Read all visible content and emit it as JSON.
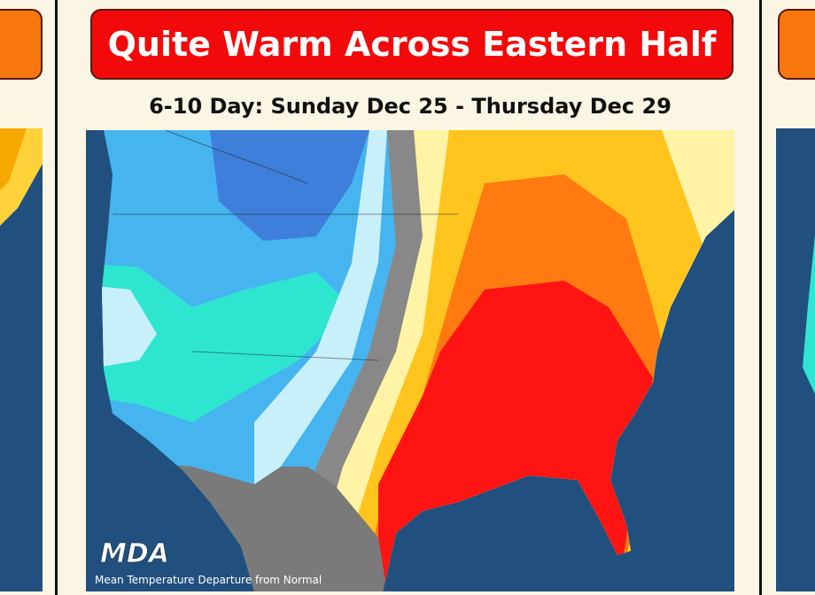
{
  "header": {
    "title": "Quite Warm Across Eastern Half",
    "subtitle": "6-10 Day: Sunday Dec 25 - Thursday Dec 29"
  },
  "map": {
    "logo": "MDA",
    "caption": "Mean Temperature Departure from Normal"
  }
}
